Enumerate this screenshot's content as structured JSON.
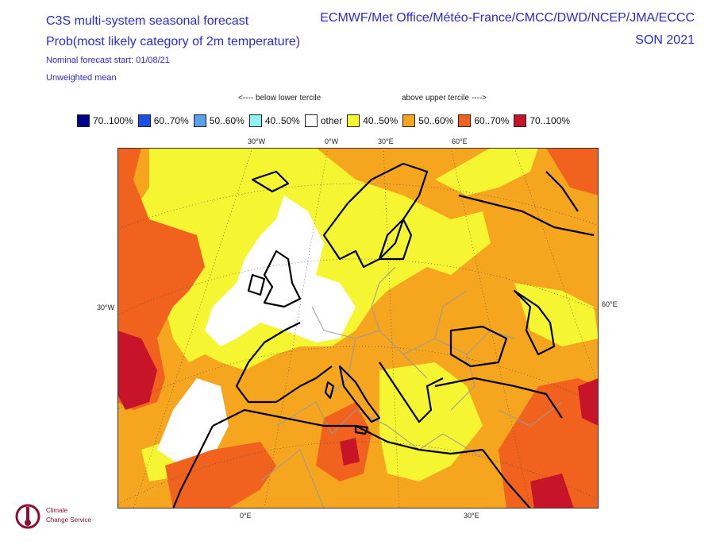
{
  "header": {
    "title_line1": "C3S multi-system seasonal forecast",
    "title_line2": "Prob(most likely category of 2m temperature)",
    "subtitle_line1": "Nominal forecast start: 01/08/21",
    "subtitle_line2": "Unweighted mean",
    "centres": "ECMWF/Met Office/Météo-France/CMCC/DWD/NCEP/JMA/ECCC",
    "season": "SON 2021"
  },
  "tercile_labels": {
    "below": "<---- below lower tercile",
    "above": "above upper tercile ---->"
  },
  "legend": [
    {
      "label": "70..100%",
      "color": "#00008c"
    },
    {
      "label": "60..70%",
      "color": "#1c4ee8"
    },
    {
      "label": "50..60%",
      "color": "#5aa0ec"
    },
    {
      "label": "40..50%",
      "color": "#8cf4f4"
    },
    {
      "label": "other",
      "color": "#ffffff"
    },
    {
      "label": "40..50%",
      "color": "#f5f532"
    },
    {
      "label": "50..60%",
      "color": "#f5a51e"
    },
    {
      "label": "60..70%",
      "color": "#f0621e"
    },
    {
      "label": "70..100%",
      "color": "#c81428"
    }
  ],
  "grid_labels": {
    "top": [
      "30°W",
      "0°W",
      "30°E",
      "60°E"
    ],
    "left": "30°W",
    "right": "60°E",
    "bottom": [
      "0°E",
      "30°E"
    ]
  },
  "logo": {
    "line1": "Climate",
    "line2": "Change Service"
  },
  "colors": {
    "title_blue": "#2a2ad8",
    "coast": "#000000",
    "borders": "#9a9a9a"
  }
}
